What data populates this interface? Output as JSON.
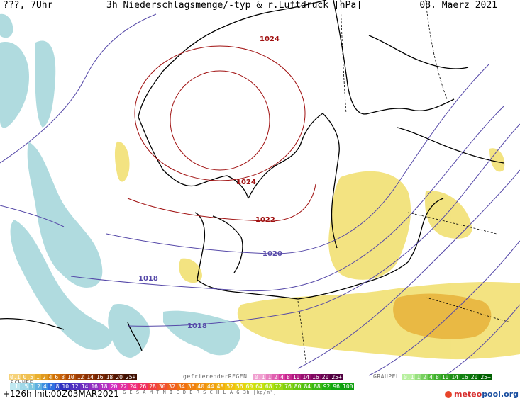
{
  "header": {
    "left": "???, 7Uhr",
    "title": "3h Niederschlagsmenge/-typ & r.Luftdruck [hPa]",
    "date": "08. Maerz 2021"
  },
  "isobars": {
    "label_1024_top": "1024",
    "label_1024_mid": "1024",
    "label_1022": "1022",
    "label_1020": "1020",
    "label_1018_left": "1018",
    "label_1018_bottom": "1018"
  },
  "legend": {
    "snow_label": "SCHNEE",
    "snow_values": [
      "0.1",
      "0.5",
      "1",
      "2",
      "4",
      "6",
      "8",
      "10",
      "12",
      "14",
      "16",
      "18",
      "20",
      "25+"
    ],
    "freezing_label": "gefrierenderREGEN",
    "freezing_values": [
      "0.1",
      "1",
      "2",
      "4",
      "8",
      "10",
      "14",
      "16",
      "20",
      "25+"
    ],
    "graupel_label": "GRAUPEL",
    "graupel_values": [
      "0.1",
      "1",
      "2",
      "4",
      "8",
      "10",
      "14",
      "16",
      "20",
      "25+"
    ],
    "total_values": [
      ".1",
      ".5",
      "1",
      "2",
      "4",
      "6",
      "8",
      "10",
      "12",
      "14",
      "16",
      "18",
      "20",
      "22",
      "24",
      "26",
      "28",
      "30",
      "32",
      "34",
      "36",
      "40",
      "44",
      "48",
      "52",
      "56",
      "60",
      "64",
      "68",
      "72",
      "76",
      "80",
      "84",
      "88",
      "92",
      "96",
      "100"
    ],
    "total_label": "G E S A M T N I E D E R S C H L A G   3h   [kg/m²]"
  },
  "footer": {
    "run": "+126h  Init:00Z03MAR2021",
    "logo_brand": "meteo",
    "logo_brand2": "pool",
    "logo_suffix": ".org"
  },
  "colors": {
    "precip_blue": "#a8d8dc",
    "precip_yellow": "#f2e27a",
    "precip_orange": "#e8b640",
    "isobar_red": "#a01010",
    "isobar_purple": "#5548a8"
  }
}
